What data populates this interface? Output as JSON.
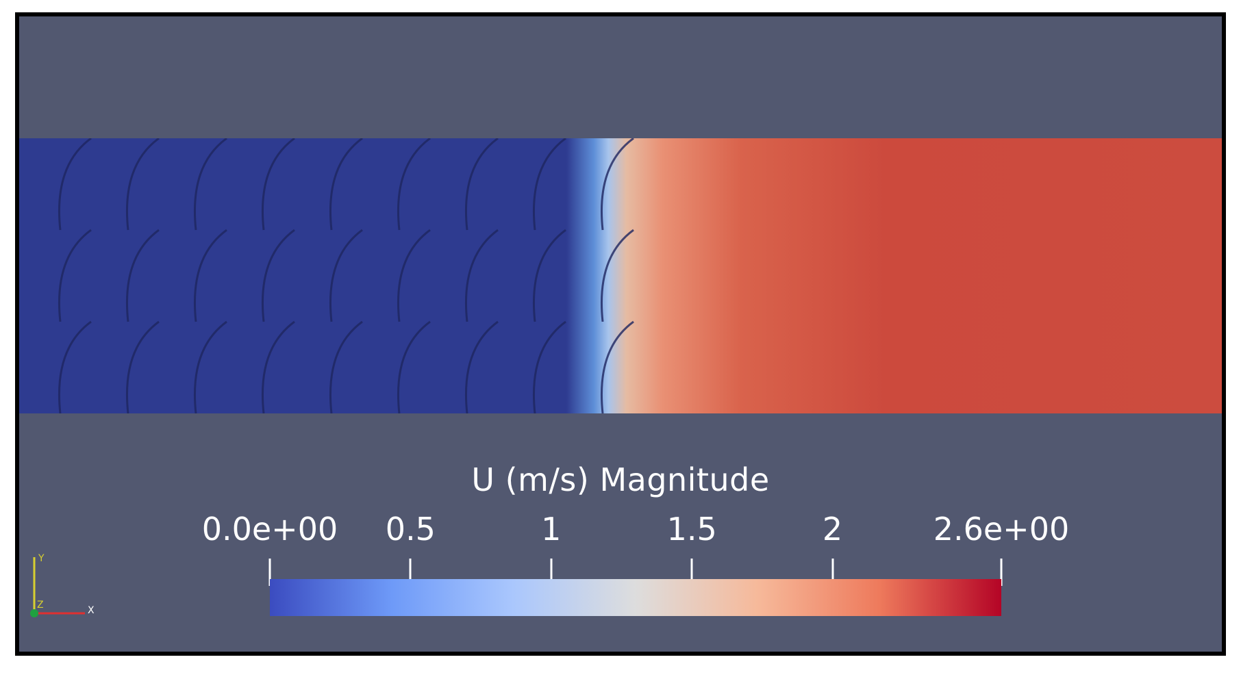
{
  "visualization": {
    "background_color": "#525870",
    "blue_region_color": "#2e3b90",
    "red_region_color": "#cc4a3d"
  },
  "legend": {
    "title": "U (m/s) Magnitude",
    "range": [
      0,
      2.6
    ],
    "ticks": [
      {
        "label": "0.0e+00",
        "value": 0
      },
      {
        "label": "0.5",
        "value": 0.5
      },
      {
        "label": "1",
        "value": 1
      },
      {
        "label": "1.5",
        "value": 1.5
      },
      {
        "label": "2",
        "value": 2
      },
      {
        "label": "2.6e+00",
        "value": 2.6
      }
    ],
    "colormap": [
      "#3b4cc0",
      "#6e9af8",
      "#aac7fd",
      "#dddddd",
      "#f6b99a",
      "#ee7a5c",
      "#b40426"
    ]
  },
  "orientation_axes": {
    "x_label": "X",
    "y_label": "Y",
    "z_label": "Z",
    "x_color": "#e03030",
    "y_color": "#d8d030",
    "z_color": "#20a040"
  }
}
